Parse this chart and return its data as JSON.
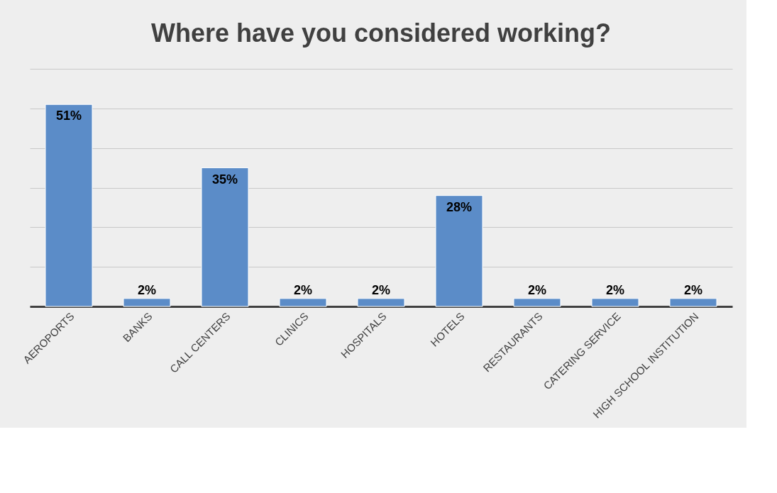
{
  "chart_data": {
    "type": "bar",
    "title": "Where have you considered working?",
    "categories": [
      "AEROPORTS",
      "BANKS",
      "CALL CENTERS",
      "CLINICS",
      "HOSPITALS",
      "HOTELS",
      "RESTAURANTS",
      "CATERING SERVICE",
      "HIGH SCHOOL INSTITUTION"
    ],
    "values": [
      51,
      2,
      35,
      2,
      2,
      28,
      2,
      2,
      2
    ],
    "value_labels": [
      "51%",
      "2%",
      "35%",
      "2%",
      "2%",
      "28%",
      "2%",
      "2%",
      "2%"
    ],
    "color": "#5b8cc8",
    "ylim": [
      0,
      60
    ],
    "yticks": [
      {
        "value": 0,
        "label": null
      },
      {
        "value": 10,
        "label": null
      },
      {
        "value": 20,
        "label": null
      },
      {
        "value": 30,
        "label": null
      },
      {
        "value": 40,
        "label": null
      },
      {
        "value": 50,
        "label": null
      },
      {
        "value": 60,
        "label": null
      }
    ],
    "tick_labels": "x",
    "grid": "y"
  }
}
